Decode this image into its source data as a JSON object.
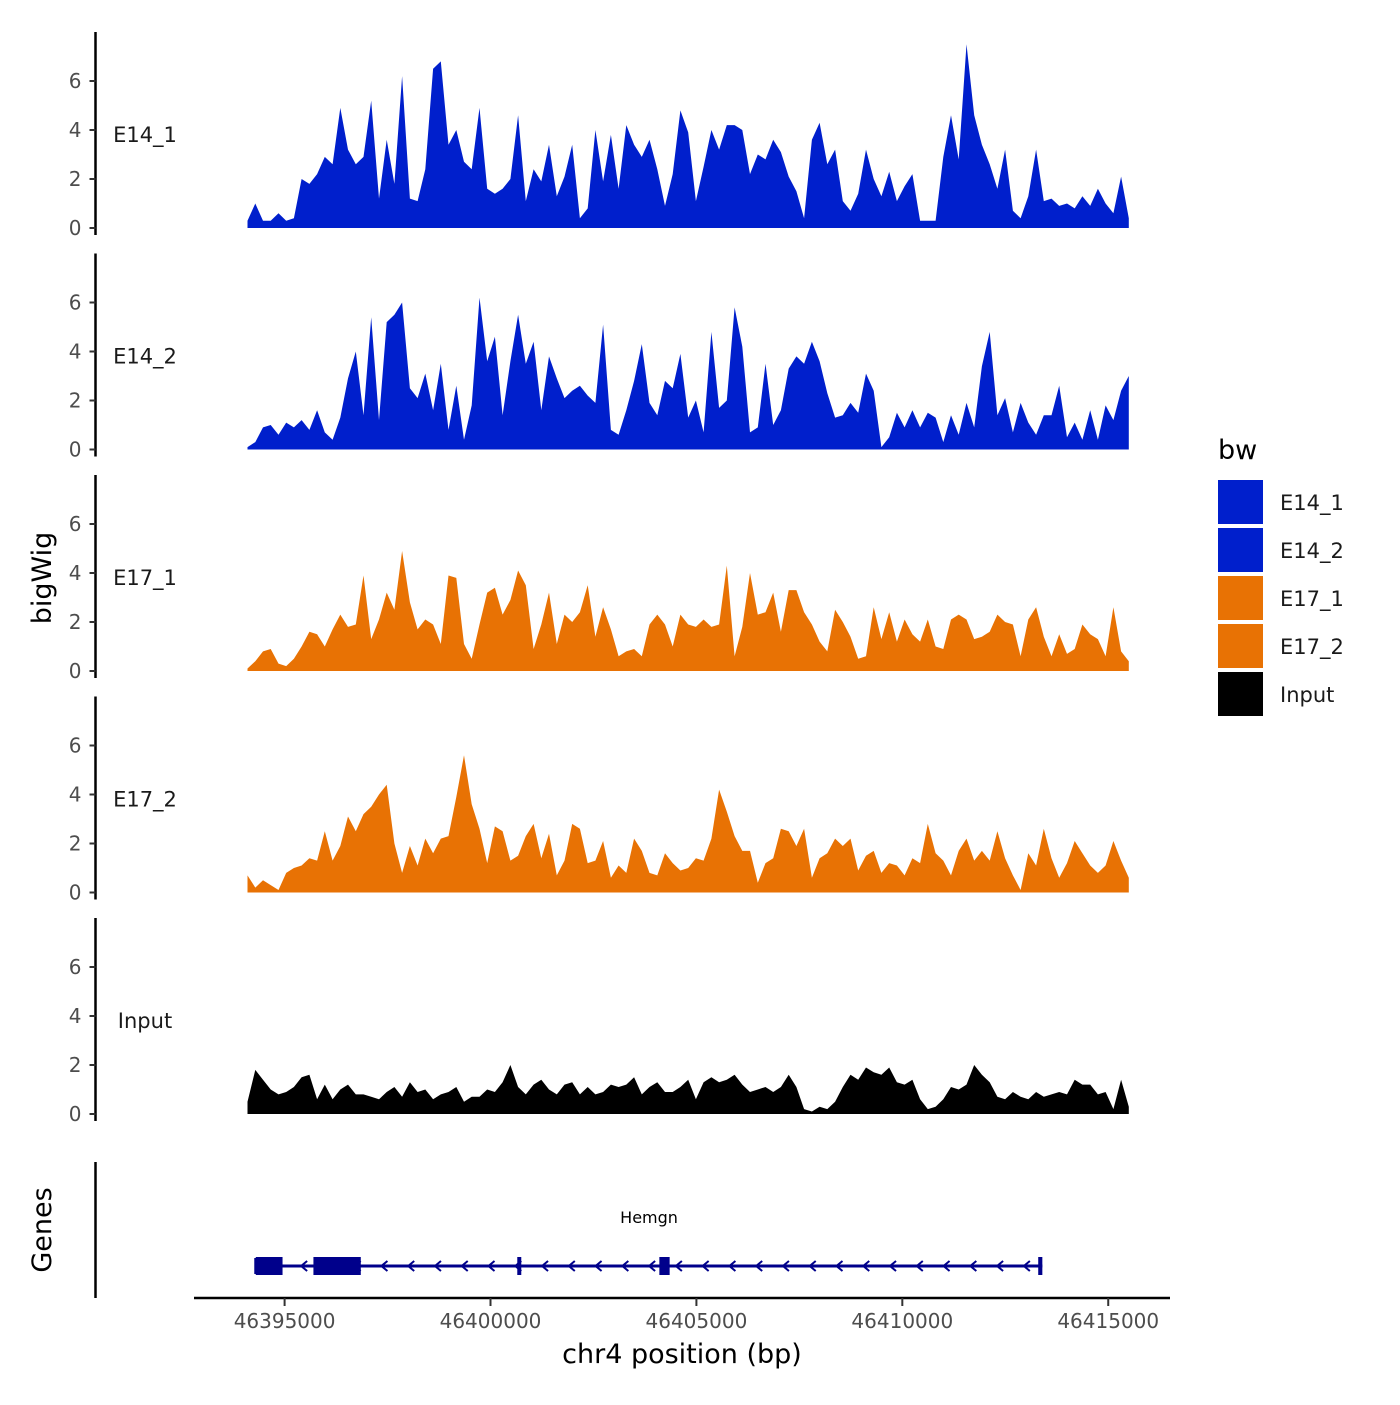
{
  "chart_data": {
    "type": "area",
    "chromosome": "chr4",
    "xlabel": "chr4 position (bp)",
    "ylabel": "bigWig",
    "gene_panel_label": "Genes",
    "xlim": [
      46392800,
      46416500
    ],
    "ylim": [
      0,
      8
    ],
    "x_ticks": [
      46395000,
      46400000,
      46405000,
      46410000,
      46415000
    ],
    "x_tick_labels": [
      "46395000",
      "46400000",
      "46405000",
      "46410000",
      "46415000"
    ],
    "y_ticks": [
      0,
      2,
      4,
      6
    ],
    "y_tick_labels": [
      "0",
      "2",
      "4",
      "6"
    ],
    "legend": {
      "title": "bw",
      "entries": [
        {
          "name": "E14_1",
          "color": "#001FCC"
        },
        {
          "name": "E14_2",
          "color": "#001FCC"
        },
        {
          "name": "E17_1",
          "color": "#E87204"
        },
        {
          "name": "E17_2",
          "color": "#E87204"
        },
        {
          "name": "Input",
          "color": "#000000"
        }
      ]
    },
    "x_range": [
      46394100,
      46415500
    ],
    "series": [
      {
        "name": "E14_1",
        "color": "#001FCC",
        "values": [
          0.3,
          1.0,
          0.3,
          0.3,
          0.6,
          0.3,
          0.4,
          2.0,
          1.8,
          2.2,
          2.9,
          2.6,
          4.9,
          3.2,
          2.6,
          2.9,
          5.2,
          1.2,
          3.6,
          1.8,
          6.2,
          1.2,
          1.1,
          2.4,
          6.5,
          6.8,
          3.4,
          4.0,
          2.7,
          2.4,
          4.9,
          1.6,
          1.4,
          1.6,
          2.0,
          4.6,
          1.1,
          2.4,
          1.9,
          3.4,
          1.3,
          2.1,
          3.4,
          0.4,
          0.8,
          4.0,
          1.9,
          3.8,
          1.6,
          4.2,
          3.4,
          2.9,
          3.6,
          2.4,
          0.9,
          2.2,
          4.8,
          3.9,
          1.1,
          2.5,
          4.0,
          3.2,
          4.2,
          4.2,
          4.0,
          2.2,
          3.0,
          2.8,
          3.6,
          3.1,
          2.1,
          1.5,
          0.4,
          3.6,
          4.3,
          2.6,
          3.2,
          1.1,
          0.7,
          1.4,
          3.2,
          2.0,
          1.3,
          2.3,
          1.1,
          1.7,
          2.2,
          0.3,
          0.3,
          0.3,
          2.9,
          4.6,
          2.8,
          7.5,
          4.6,
          3.4,
          2.6,
          1.6,
          3.2,
          0.7,
          0.4,
          1.3,
          3.2,
          1.1,
          1.2,
          0.9,
          1.0,
          0.8,
          1.3,
          0.9,
          1.6,
          1.0,
          0.6,
          2.1,
          0.4
        ]
      },
      {
        "name": "E14_2",
        "color": "#001FCC",
        "values": [
          0.1,
          0.3,
          0.9,
          1.0,
          0.6,
          1.1,
          0.9,
          1.2,
          0.8,
          1.6,
          0.7,
          0.4,
          1.3,
          2.9,
          4.0,
          1.4,
          5.4,
          1.2,
          5.2,
          5.5,
          6.0,
          2.5,
          2.1,
          3.1,
          1.6,
          3.5,
          0.8,
          2.6,
          0.4,
          1.8,
          6.2,
          3.6,
          4.6,
          1.4,
          3.6,
          5.5,
          3.5,
          4.4,
          1.6,
          3.8,
          2.9,
          2.1,
          2.4,
          2.6,
          2.2,
          1.9,
          5.1,
          0.8,
          0.6,
          1.6,
          2.8,
          4.3,
          1.9,
          1.4,
          2.8,
          2.5,
          3.9,
          1.3,
          2.0,
          0.7,
          4.8,
          1.7,
          2.0,
          5.8,
          4.2,
          0.7,
          0.9,
          3.5,
          1.0,
          1.6,
          3.3,
          3.8,
          3.5,
          4.4,
          3.6,
          2.3,
          1.3,
          1.4,
          1.9,
          1.5,
          3.1,
          2.4,
          0.1,
          0.5,
          1.5,
          0.9,
          1.6,
          0.9,
          1.5,
          1.3,
          0.3,
          1.4,
          0.6,
          1.9,
          0.9,
          3.4,
          4.8,
          1.4,
          2.1,
          0.7,
          1.9,
          1.1,
          0.6,
          1.4,
          1.4,
          2.6,
          0.5,
          1.1,
          0.4,
          1.6,
          0.4,
          1.8,
          1.2,
          2.4,
          3.0
        ]
      },
      {
        "name": "E17_1",
        "color": "#E87204",
        "values": [
          0.1,
          0.4,
          0.8,
          0.9,
          0.3,
          0.2,
          0.5,
          1.0,
          1.6,
          1.5,
          1.0,
          1.7,
          2.3,
          1.8,
          1.9,
          3.9,
          1.3,
          2.1,
          3.2,
          2.5,
          4.9,
          2.8,
          1.7,
          2.1,
          1.9,
          1.1,
          3.9,
          3.8,
          1.1,
          0.5,
          1.9,
          3.2,
          3.4,
          2.3,
          2.9,
          4.1,
          3.5,
          0.9,
          1.9,
          3.2,
          1.1,
          2.3,
          2.0,
          2.4,
          3.5,
          1.4,
          2.6,
          1.7,
          0.6,
          0.8,
          0.9,
          0.6,
          1.9,
          2.3,
          1.9,
          1.0,
          2.3,
          1.9,
          1.8,
          2.1,
          1.8,
          1.9,
          4.3,
          0.6,
          1.8,
          4.0,
          2.3,
          2.4,
          3.2,
          1.6,
          3.3,
          3.3,
          2.4,
          1.9,
          1.2,
          0.8,
          2.5,
          2.0,
          1.4,
          0.5,
          0.6,
          2.6,
          1.3,
          2.4,
          1.2,
          2.1,
          1.5,
          1.2,
          2.1,
          1.0,
          0.9,
          2.1,
          2.3,
          2.1,
          1.3,
          1.4,
          1.6,
          2.3,
          2.0,
          1.9,
          0.6,
          2.1,
          2.6,
          1.4,
          0.6,
          1.5,
          0.7,
          0.9,
          1.9,
          1.5,
          1.3,
          0.6,
          2.6,
          0.8,
          0.4
        ]
      },
      {
        "name": "E17_2",
        "color": "#E87204",
        "values": [
          0.7,
          0.2,
          0.5,
          0.3,
          0.1,
          0.8,
          1.0,
          1.1,
          1.4,
          1.3,
          2.5,
          1.3,
          1.9,
          3.1,
          2.5,
          3.2,
          3.5,
          4.0,
          4.4,
          2.0,
          0.8,
          1.9,
          1.1,
          2.2,
          1.6,
          2.2,
          2.3,
          3.9,
          5.6,
          3.6,
          2.6,
          1.2,
          2.7,
          2.5,
          1.3,
          1.5,
          2.3,
          2.8,
          1.4,
          2.4,
          0.7,
          1.3,
          2.8,
          2.6,
          1.2,
          1.3,
          2.1,
          0.6,
          1.1,
          0.8,
          2.2,
          1.7,
          0.8,
          0.7,
          1.6,
          1.2,
          0.9,
          1.0,
          1.4,
          1.3,
          2.2,
          4.2,
          3.3,
          2.3,
          1.7,
          1.7,
          0.4,
          1.2,
          1.4,
          2.6,
          2.5,
          1.9,
          2.6,
          0.6,
          1.4,
          1.6,
          2.2,
          1.9,
          2.2,
          0.9,
          1.5,
          1.7,
          0.8,
          1.2,
          1.1,
          0.7,
          1.4,
          1.2,
          2.8,
          1.6,
          1.3,
          0.7,
          1.7,
          2.2,
          1.3,
          1.7,
          1.3,
          2.5,
          1.4,
          0.7,
          0.1,
          1.6,
          1.1,
          2.6,
          1.4,
          0.6,
          1.2,
          2.1,
          1.6,
          1.1,
          0.8,
          1.1,
          2.1,
          1.3,
          0.6
        ]
      },
      {
        "name": "Input",
        "color": "#000000",
        "values": [
          0.5,
          1.8,
          1.4,
          1.0,
          0.8,
          0.9,
          1.1,
          1.5,
          1.6,
          0.6,
          1.2,
          0.6,
          1.0,
          1.2,
          0.8,
          0.8,
          0.7,
          0.6,
          0.9,
          1.1,
          0.7,
          1.3,
          0.9,
          1.0,
          0.6,
          0.8,
          0.9,
          1.1,
          0.5,
          0.7,
          0.7,
          1.0,
          0.9,
          1.3,
          2.0,
          1.1,
          0.8,
          1.2,
          1.4,
          1.0,
          0.8,
          1.2,
          1.3,
          0.8,
          1.1,
          0.8,
          0.9,
          1.2,
          1.1,
          1.2,
          1.5,
          0.8,
          1.1,
          1.3,
          0.9,
          0.9,
          1.1,
          1.4,
          0.6,
          1.3,
          1.5,
          1.3,
          1.4,
          1.6,
          1.2,
          0.9,
          1.0,
          1.1,
          0.9,
          1.1,
          1.6,
          1.1,
          0.2,
          0.1,
          0.3,
          0.2,
          0.5,
          1.1,
          1.6,
          1.4,
          1.9,
          1.7,
          1.6,
          1.9,
          1.3,
          1.2,
          1.4,
          0.6,
          0.2,
          0.3,
          0.6,
          1.1,
          1.0,
          1.2,
          2.0,
          1.6,
          1.3,
          0.7,
          0.6,
          0.9,
          0.7,
          0.6,
          0.9,
          0.7,
          0.8,
          0.9,
          0.8,
          1.4,
          1.2,
          1.2,
          0.8,
          0.9,
          0.2,
          1.4,
          0.3
        ]
      }
    ],
    "gene": {
      "name": "Hemgn",
      "strand": "-",
      "start": 46394300,
      "end": 46413400,
      "exons": [
        {
          "start": 46394300,
          "end": 46394950
        },
        {
          "start": 46395700,
          "end": 46396850
        },
        {
          "start": 46400650,
          "end": 46400720
        },
        {
          "start": 46404100,
          "end": 46404350
        },
        {
          "start": 46413300,
          "end": 46413400
        }
      ]
    }
  }
}
